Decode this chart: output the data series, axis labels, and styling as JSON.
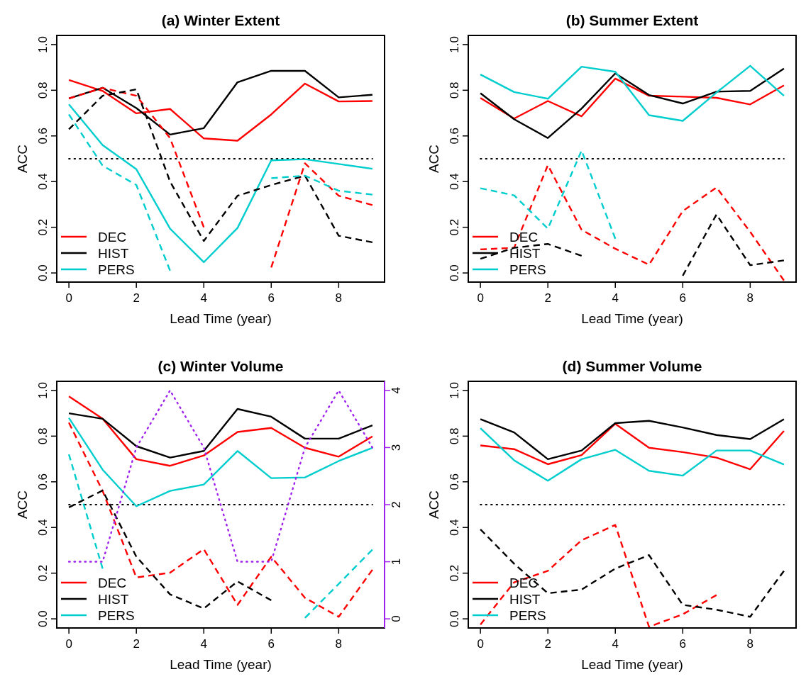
{
  "chart_data": [
    {
      "type": "line",
      "title": "(a) Winter Extent",
      "xlabel": "Lead Time (year)",
      "ylabel": "ACC",
      "x": [
        0,
        1,
        2,
        3,
        4,
        5,
        6,
        7,
        8,
        9
      ],
      "xlim": [
        -0.36,
        9.36
      ],
      "xticks": [
        0,
        2,
        4,
        6,
        8
      ],
      "ylim": [
        -0.04,
        1.04
      ],
      "yticks": [
        {
          "value": 0,
          "label": "0.0"
        },
        {
          "value": 0.2,
          "label": "0.2"
        },
        {
          "value": 0.4,
          "label": "0.4"
        },
        {
          "value": 0.6,
          "label": "0.6"
        },
        {
          "value": 0.8,
          "label": "0.8"
        },
        {
          "value": 1,
          "label": "1.0"
        }
      ],
      "legend": "bottom left",
      "ref_lines": [
        {
          "axis": "y",
          "value": 0.5,
          "color": "#000000",
          "line_style": "dotted"
        }
      ],
      "series": [
        {
          "name": "DEC",
          "color": "#ff0000",
          "line_style": "solid",
          "values": [
            0.845,
            0.797,
            0.699,
            0.718,
            0.589,
            0.579,
            0.694,
            0.829,
            0.751,
            0.753
          ]
        },
        {
          "name": "HIST",
          "color": "#000000",
          "line_style": "solid",
          "values": [
            0.764,
            0.811,
            0.722,
            0.606,
            0.634,
            0.835,
            0.885,
            0.885,
            0.769,
            0.78
          ]
        },
        {
          "name": "PERS",
          "color": "#00cdcd",
          "line_style": "solid",
          "values": [
            0.738,
            0.56,
            0.454,
            0.194,
            0.047,
            0.197,
            0.493,
            0.498,
            0.477,
            0.456
          ]
        },
        {
          "color": "#ff0000",
          "line_style": "dashed",
          "values": [
            0.764,
            0.81,
            0.776,
            0.59,
            0.2,
            null,
            0.024,
            0.48,
            0.338,
            0.297
          ]
        },
        {
          "color": "#000000",
          "line_style": "dashed",
          "values": [
            0.629,
            0.776,
            0.804,
            0.4,
            0.14,
            0.338,
            0.385,
            0.426,
            0.163,
            0.134
          ]
        },
        {
          "color": "#00cdcd",
          "line_style": "dashed",
          "values": [
            0.694,
            0.47,
            0.385,
            0.01,
            null,
            null,
            0.415,
            0.426,
            0.36,
            0.343
          ]
        }
      ]
    },
    {
      "type": "line",
      "title": "(b) Summer Extent",
      "xlabel": "Lead Time (year)",
      "ylabel": "ACC",
      "x": [
        0,
        1,
        2,
        3,
        4,
        5,
        6,
        7,
        8,
        9
      ],
      "xlim": [
        -0.36,
        9.36
      ],
      "xticks": [
        0,
        2,
        4,
        6,
        8
      ],
      "ylim": [
        -0.04,
        1.04
      ],
      "yticks": [
        {
          "value": 0,
          "label": "0.0"
        },
        {
          "value": 0.2,
          "label": "0.2"
        },
        {
          "value": 0.4,
          "label": "0.4"
        },
        {
          "value": 0.6,
          "label": "0.6"
        },
        {
          "value": 0.8,
          "label": "0.8"
        },
        {
          "value": 1,
          "label": "1.0"
        }
      ],
      "legend": "bottom left",
      "ref_lines": [
        {
          "axis": "y",
          "value": 0.5,
          "color": "#000000",
          "line_style": "dotted"
        }
      ],
      "series": [
        {
          "name": "DEC",
          "color": "#ff0000",
          "line_style": "solid",
          "values": [
            0.766,
            0.676,
            0.753,
            0.686,
            0.851,
            0.776,
            0.772,
            0.767,
            0.738,
            0.821
          ]
        },
        {
          "name": "HIST",
          "color": "#000000",
          "line_style": "solid",
          "values": [
            0.787,
            0.673,
            0.591,
            0.72,
            0.874,
            0.779,
            0.742,
            0.794,
            0.797,
            0.895
          ]
        },
        {
          "name": "PERS",
          "color": "#00cdcd",
          "line_style": "solid",
          "values": [
            0.869,
            0.792,
            0.763,
            0.903,
            0.881,
            0.691,
            0.666,
            0.79,
            0.907,
            0.776
          ]
        },
        {
          "color": "#ff0000",
          "line_style": "dashed",
          "values": [
            0.103,
            0.11,
            0.472,
            0.189,
            0.106,
            0.036,
            0.271,
            0.374,
            0.18,
            -0.033
          ]
        },
        {
          "color": "#000000",
          "line_style": "dashed",
          "values": [
            0.062,
            0.11,
            0.127,
            0.075,
            null,
            null,
            -0.012,
            0.256,
            0.034,
            0.055
          ]
        },
        {
          "color": "#00cdcd",
          "line_style": "dashed",
          "values": [
            0.371,
            0.34,
            0.194,
            0.536,
            0.15,
            null,
            null,
            null,
            null,
            null
          ]
        }
      ]
    },
    {
      "type": "line",
      "title": "(c) Winter Volume",
      "xlabel": "Lead Time (year)",
      "ylabel": "ACC",
      "x": [
        0,
        1,
        2,
        3,
        4,
        5,
        6,
        7,
        8,
        9
      ],
      "xlim": [
        -0.36,
        9.36
      ],
      "xticks": [
        0,
        2,
        4,
        6,
        8
      ],
      "ylim": [
        -0.04,
        1.04
      ],
      "yticks": [
        {
          "value": 0,
          "label": "0.0"
        },
        {
          "value": 0.2,
          "label": "0.2"
        },
        {
          "value": 0.4,
          "label": "0.4"
        },
        {
          "value": 0.6,
          "label": "0.6"
        },
        {
          "value": 0.8,
          "label": "0.8"
        },
        {
          "value": 1,
          "label": "1.0"
        }
      ],
      "y2lim": [
        -0.16,
        4.16
      ],
      "y2ticks": [
        0,
        1,
        2,
        3,
        4
      ],
      "legend": "bottom left",
      "ref_lines": [
        {
          "axis": "y",
          "value": 0.5,
          "color": "#000000",
          "line_style": "dotted"
        }
      ],
      "series": [
        {
          "name": "DEC",
          "color": "#ff0000",
          "line_style": "solid",
          "values": [
            0.974,
            0.876,
            0.699,
            0.67,
            0.715,
            0.818,
            0.836,
            0.749,
            0.71,
            0.799
          ]
        },
        {
          "name": "HIST",
          "color": "#000000",
          "line_style": "solid",
          "values": [
            0.9,
            0.876,
            0.756,
            0.706,
            0.735,
            0.919,
            0.885,
            0.789,
            0.789,
            0.847
          ]
        },
        {
          "name": "PERS",
          "color": "#00cdcd",
          "line_style": "solid",
          "values": [
            0.88,
            0.653,
            0.493,
            0.56,
            0.588,
            0.735,
            0.616,
            0.619,
            0.691,
            0.749
          ]
        },
        {
          "color": "#ff0000",
          "line_style": "dashed",
          "values": [
            0.859,
            0.56,
            0.181,
            0.202,
            0.305,
            0.061,
            0.272,
            0.092,
            0.009,
            0.215
          ]
        },
        {
          "color": "#000000",
          "line_style": "dashed",
          "values": [
            0.488,
            0.562,
            0.272,
            0.107,
            0.045,
            0.164,
            0.081,
            null,
            null,
            null
          ]
        },
        {
          "color": "#00cdcd",
          "line_style": "dashed",
          "values": [
            0.72,
            0.22,
            null,
            null,
            null,
            null,
            null,
            0.004,
            0.153,
            0.303
          ]
        },
        {
          "color": "#a020f0",
          "line_style": "dotted",
          "axis": "y2",
          "values": [
            1,
            1,
            3,
            4,
            3,
            1,
            1,
            3,
            4,
            3
          ]
        }
      ]
    },
    {
      "type": "line",
      "title": "(d) Summer Volume",
      "xlabel": "Lead Time (year)",
      "ylabel": "ACC",
      "x": [
        0,
        1,
        2,
        3,
        4,
        5,
        6,
        7,
        8,
        9
      ],
      "xlim": [
        -0.36,
        9.36
      ],
      "xticks": [
        0,
        2,
        4,
        6,
        8
      ],
      "ylim": [
        -0.04,
        1.04
      ],
      "yticks": [
        {
          "value": 0,
          "label": "0.0"
        },
        {
          "value": 0.2,
          "label": "0.2"
        },
        {
          "value": 0.4,
          "label": "0.4"
        },
        {
          "value": 0.6,
          "label": "0.6"
        },
        {
          "value": 0.8,
          "label": "0.8"
        },
        {
          "value": 1,
          "label": "1.0"
        }
      ],
      "legend": "bottom left",
      "ref_lines": [
        {
          "axis": "y",
          "value": 0.5,
          "color": "#000000",
          "line_style": "dotted"
        }
      ],
      "series": [
        {
          "name": "DEC",
          "color": "#ff0000",
          "line_style": "solid",
          "values": [
            0.759,
            0.743,
            0.677,
            0.717,
            0.854,
            0.749,
            0.73,
            0.706,
            0.655,
            0.823
          ]
        },
        {
          "name": "HIST",
          "color": "#000000",
          "line_style": "solid",
          "values": [
            0.874,
            0.816,
            0.699,
            0.737,
            0.857,
            0.867,
            0.838,
            0.805,
            0.787,
            0.874
          ]
        },
        {
          "name": "PERS",
          "color": "#00cdcd",
          "line_style": "solid",
          "values": [
            0.835,
            0.694,
            0.605,
            0.699,
            0.74,
            0.648,
            0.627,
            0.737,
            0.737,
            0.676
          ]
        },
        {
          "color": "#ff0000",
          "line_style": "dashed",
          "values": [
            -0.025,
            0.16,
            0.21,
            0.344,
            0.411,
            -0.035,
            0.02,
            0.104,
            null,
            null
          ]
        },
        {
          "color": "#000000",
          "line_style": "dashed",
          "values": [
            0.392,
            0.241,
            0.112,
            0.128,
            0.22,
            0.279,
            0.061,
            0.04,
            0.009,
            0.21
          ]
        }
      ]
    }
  ]
}
